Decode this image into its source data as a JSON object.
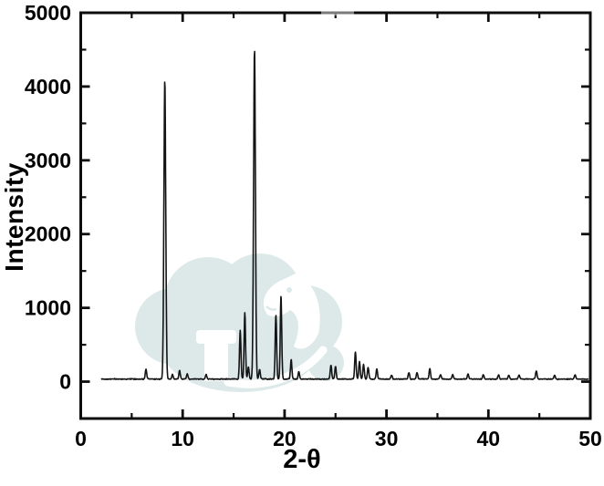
{
  "figure": {
    "background_color": "#ffffff",
    "axis_color": "#0d0d0d",
    "watermark": {
      "description": "cloud-goat-logo-watermark",
      "cloud_color": "#dde9e9",
      "top_remnant_color": "rgba(255,255,255,0.45)"
    }
  },
  "chart_data": {
    "type": "line",
    "title": "",
    "xlabel": "2-θ",
    "ylabel": "Intensity",
    "xlim": [
      0,
      50
    ],
    "ylim": [
      -500,
      5000
    ],
    "x_ticks": [
      "0",
      "10",
      "20",
      "30",
      "40",
      "50"
    ],
    "x_tick_values": [
      0,
      10,
      20,
      30,
      40,
      50
    ],
    "x_minor_tick_values": [
      5,
      15,
      25,
      35,
      45
    ],
    "y_ticks": [
      "0",
      "1000",
      "2000",
      "3000",
      "4000",
      "5000"
    ],
    "y_tick_values": [
      0,
      1000,
      2000,
      3000,
      4000,
      5000
    ],
    "y_minor_tick_values": [
      500,
      1500,
      2500,
      3500,
      4500
    ],
    "grid": false,
    "legend": false,
    "line_color": "#141414",
    "data_x_range": [
      2.0,
      49.8
    ],
    "baseline_intensity": 35,
    "noise_amplitude": 10,
    "default_peak_sigma": 0.07,
    "peaks": [
      {
        "two_theta": 6.4,
        "intensity": 130
      },
      {
        "two_theta": 8.25,
        "intensity": 4050,
        "sigma": 0.09
      },
      {
        "two_theta": 9.0,
        "intensity": 60
      },
      {
        "two_theta": 9.7,
        "intensity": 110
      },
      {
        "two_theta": 10.45,
        "intensity": 70
      },
      {
        "two_theta": 12.3,
        "intensity": 60
      },
      {
        "two_theta": 15.65,
        "intensity": 660
      },
      {
        "two_theta": 16.1,
        "intensity": 900
      },
      {
        "two_theta": 16.45,
        "intensity": 160
      },
      {
        "two_theta": 17.05,
        "intensity": 4470,
        "sigma": 0.09
      },
      {
        "two_theta": 17.55,
        "intensity": 130
      },
      {
        "two_theta": 19.15,
        "intensity": 870
      },
      {
        "two_theta": 19.65,
        "intensity": 1130
      },
      {
        "two_theta": 20.65,
        "intensity": 260
      },
      {
        "two_theta": 21.4,
        "intensity": 100
      },
      {
        "two_theta": 24.55,
        "intensity": 190
      },
      {
        "two_theta": 25.0,
        "intensity": 170
      },
      {
        "two_theta": 26.95,
        "intensity": 370
      },
      {
        "two_theta": 27.35,
        "intensity": 240
      },
      {
        "two_theta": 27.75,
        "intensity": 200
      },
      {
        "two_theta": 28.2,
        "intensity": 160
      },
      {
        "two_theta": 29.05,
        "intensity": 140
      },
      {
        "two_theta": 30.5,
        "intensity": 50
      },
      {
        "two_theta": 32.2,
        "intensity": 90
      },
      {
        "two_theta": 33.0,
        "intensity": 90
      },
      {
        "two_theta": 34.25,
        "intensity": 140
      },
      {
        "two_theta": 35.3,
        "intensity": 60
      },
      {
        "two_theta": 36.5,
        "intensity": 60
      },
      {
        "two_theta": 38.0,
        "intensity": 70
      },
      {
        "two_theta": 39.5,
        "intensity": 60
      },
      {
        "two_theta": 41.0,
        "intensity": 55
      },
      {
        "two_theta": 42.0,
        "intensity": 50
      },
      {
        "two_theta": 43.0,
        "intensity": 55
      },
      {
        "two_theta": 44.7,
        "intensity": 110
      },
      {
        "two_theta": 46.5,
        "intensity": 50
      },
      {
        "two_theta": 48.5,
        "intensity": 55
      }
    ]
  }
}
